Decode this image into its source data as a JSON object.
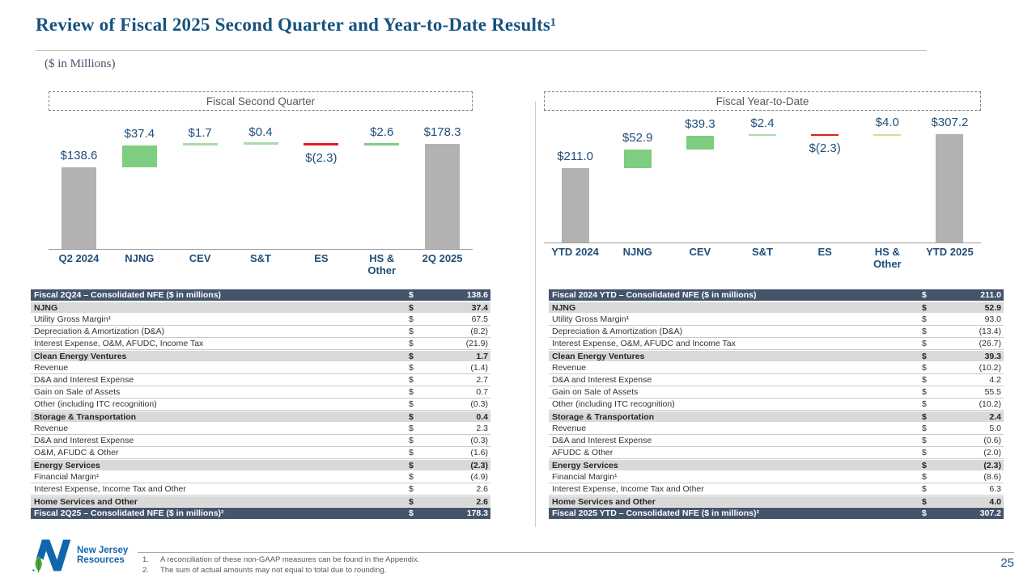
{
  "slide": {
    "title": "Review of Fiscal 2025 Second Quarter and Year-to-Date Results¹",
    "subtitle": "($ in Millions)",
    "page_number": "25",
    "logo": {
      "line1": "New Jersey",
      "line2": "Resources"
    },
    "footnotes": [
      {
        "num": "1.",
        "text": "A reconciliation of these non-GAAP measures can be found in the Appendix."
      },
      {
        "num": "2.",
        "text": "The sum of actual amounts may not equal to total due to rounding."
      }
    ]
  },
  "palette": {
    "gray": "#B2B2B2",
    "green": "#7ECD80",
    "light_green": "#A8DBA8",
    "yellow_green": "#C6E49A",
    "red": "#E0201C"
  },
  "chart_data": [
    {
      "type": "bar",
      "subtype": "waterfall",
      "title": "Fiscal Second Quarter",
      "categories": [
        "Q2 2024",
        "NJNG",
        "CEV",
        "S&T",
        "ES",
        "HS &\nOther",
        "2Q 2025"
      ],
      "bars": [
        {
          "label": "$138.6",
          "value": 138.6,
          "kind": "start",
          "color": "gray"
        },
        {
          "label": "$37.4",
          "value": 37.4,
          "kind": "delta",
          "color": "green"
        },
        {
          "label": "$1.7",
          "value": 1.7,
          "kind": "delta",
          "color": "light_green"
        },
        {
          "label": "$0.4",
          "value": 0.4,
          "kind": "delta",
          "color": "light_green"
        },
        {
          "label": "$(2.3)",
          "value": -2.3,
          "kind": "delta",
          "color": "red"
        },
        {
          "label": "$2.6",
          "value": 2.6,
          "kind": "delta",
          "color": "green"
        },
        {
          "label": "$178.3",
          "value": 178.3,
          "kind": "total",
          "color": "gray"
        }
      ],
      "ylim": [
        0,
        236
      ],
      "grid": false,
      "legend": false
    },
    {
      "type": "bar",
      "subtype": "waterfall",
      "title": "Fiscal Year-to-Date",
      "categories": [
        "YTD 2024",
        "NJNG",
        "CEV",
        "S&T",
        "ES",
        "HS &\nOther",
        "YTD 2025"
      ],
      "bars": [
        {
          "label": "$211.0",
          "value": 211.0,
          "kind": "start",
          "color": "gray"
        },
        {
          "label": "$52.9",
          "value": 52.9,
          "kind": "delta",
          "color": "green"
        },
        {
          "label": "$39.3",
          "value": 39.3,
          "kind": "delta",
          "color": "green"
        },
        {
          "label": "$2.4",
          "value": 2.4,
          "kind": "delta",
          "color": "light_green"
        },
        {
          "label": "$(2.3)",
          "value": -2.3,
          "kind": "delta",
          "color": "red"
        },
        {
          "label": "$4.0",
          "value": 4.0,
          "kind": "delta",
          "color": "yellow_green"
        },
        {
          "label": "$307.2",
          "value": 307.2,
          "kind": "total",
          "color": "gray"
        }
      ],
      "ylim": [
        0,
        377
      ],
      "grid": false,
      "legend": false
    }
  ],
  "tables": [
    {
      "rows": [
        {
          "label": "Fiscal 2Q24 – Consolidated NFE ($ in millions)",
          "cur": "$",
          "value": "138.6",
          "style": "total"
        },
        {
          "label": "NJNG",
          "cur": "$",
          "value": "37.4",
          "style": "section"
        },
        {
          "label": "Utility Gross Margin¹",
          "cur": "$",
          "value": "67.5",
          "style": "detail"
        },
        {
          "label": "Depreciation & Amortization (D&A)",
          "cur": "$",
          "value": "(8.2)",
          "style": "detail"
        },
        {
          "label": "Interest Expense, O&M, AFUDC, Income Tax",
          "cur": "$",
          "value": "(21.9)",
          "style": "detail"
        },
        {
          "label": "Clean Energy Ventures",
          "cur": "$",
          "value": "1.7",
          "style": "section"
        },
        {
          "label": "Revenue",
          "cur": "$",
          "value": "(1.4)",
          "style": "detail"
        },
        {
          "label": "D&A and Interest Expense",
          "cur": "$",
          "value": "2.7",
          "style": "detail"
        },
        {
          "label": "Gain on Sale of Assets",
          "cur": "$",
          "value": "0.7",
          "style": "detail"
        },
        {
          "label": "Other (including ITC recognition)",
          "cur": "$",
          "value": "(0.3)",
          "style": "detail"
        },
        {
          "label": "Storage & Transportation",
          "cur": "$",
          "value": "0.4",
          "style": "section"
        },
        {
          "label": "Revenue",
          "cur": "$",
          "value": "2.3",
          "style": "detail"
        },
        {
          "label": "D&A and Interest Expense",
          "cur": "$",
          "value": "(0.3)",
          "style": "detail"
        },
        {
          "label": "O&M, AFUDC & Other",
          "cur": "$",
          "value": "(1.6)",
          "style": "detail"
        },
        {
          "label": "Energy Services",
          "cur": "$",
          "value": "(2.3)",
          "style": "section"
        },
        {
          "label": "Financial Margin¹",
          "cur": "$",
          "value": "(4.9)",
          "style": "detail"
        },
        {
          "label": "Interest Expense, Income Tax and Other",
          "cur": "$",
          "value": "2.6",
          "style": "detail"
        },
        {
          "label": "Home Services and Other",
          "cur": "$",
          "value": "2.6",
          "style": "section"
        },
        {
          "label": "Fiscal 2Q25 – Consolidated NFE ($ in millions)²",
          "cur": "$",
          "value": "178.3",
          "style": "total"
        }
      ]
    },
    {
      "rows": [
        {
          "label": "Fiscal 2024 YTD – Consolidated NFE ($ in millions)",
          "cur": "$",
          "value": "211.0",
          "style": "total"
        },
        {
          "label": "NJNG",
          "cur": "$",
          "value": "52.9",
          "style": "section"
        },
        {
          "label": "Utility Gross Margin¹",
          "cur": "$",
          "value": "93.0",
          "style": "detail"
        },
        {
          "label": "Depreciation & Amortization (D&A)",
          "cur": "$",
          "value": "(13.4)",
          "style": "detail"
        },
        {
          "label": "Interest Expense, O&M, AFUDC and Income Tax",
          "cur": "$",
          "value": "(26.7)",
          "style": "detail"
        },
        {
          "label": "Clean Energy Ventures",
          "cur": "$",
          "value": "39.3",
          "style": "section"
        },
        {
          "label": "Revenue",
          "cur": "$",
          "value": "(10.2)",
          "style": "detail"
        },
        {
          "label": "D&A and Interest Expense",
          "cur": "$",
          "value": "4.2",
          "style": "detail"
        },
        {
          "label": "Gain on Sale of Assets",
          "cur": "$",
          "value": "55.5",
          "style": "detail"
        },
        {
          "label": "Other (including ITC recognition)",
          "cur": "$",
          "value": "(10.2)",
          "style": "detail"
        },
        {
          "label": "Storage & Transportation",
          "cur": "$",
          "value": "2.4",
          "style": "section"
        },
        {
          "label": "Revenue",
          "cur": "$",
          "value": "5.0",
          "style": "detail"
        },
        {
          "label": "D&A and Interest Expense",
          "cur": "$",
          "value": "(0.6)",
          "style": "detail"
        },
        {
          "label": "AFUDC & Other",
          "cur": "$",
          "value": "(2.0)",
          "style": "detail"
        },
        {
          "label": "Energy Services",
          "cur": "$",
          "value": "(2.3)",
          "style": "section"
        },
        {
          "label": "Financial Margin¹",
          "cur": "$",
          "value": "(8.6)",
          "style": "detail"
        },
        {
          "label": "Interest Expense, Income Tax and Other",
          "cur": "$",
          "value": "6.3",
          "style": "detail"
        },
        {
          "label": "Home Services and Other",
          "cur": "$",
          "value": "4.0",
          "style": "section"
        },
        {
          "label": "Fiscal 2025 YTD – Consolidated NFE ($ in millions)²",
          "cur": "$",
          "value": "307.2",
          "style": "total"
        }
      ]
    }
  ]
}
